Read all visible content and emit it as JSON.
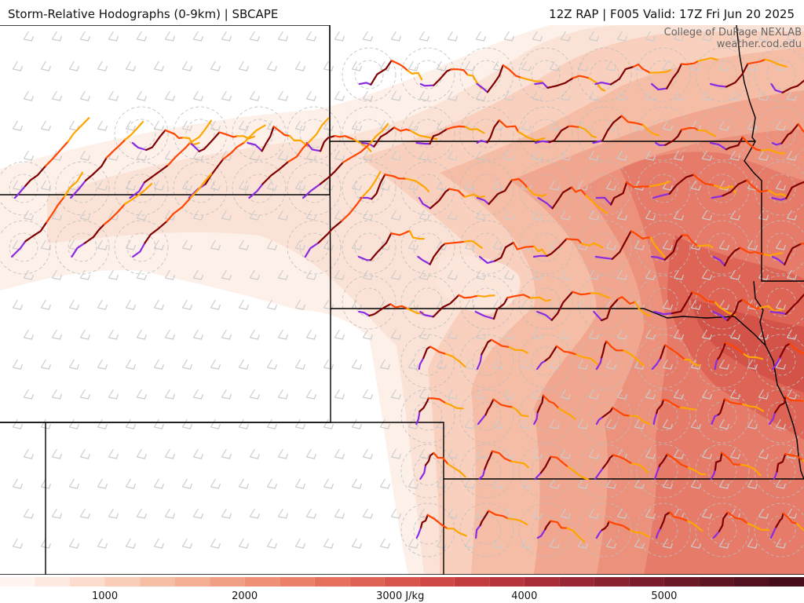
{
  "header": {
    "title": "Storm-Relative Hodographs (0-9km) | SBCAPE",
    "run": "12Z RAP | F005 Valid: 17Z Fri Jun 20 2025"
  },
  "credit": {
    "line1": "College of DuPage NEXLAB",
    "line2": "weather.cod.edu"
  },
  "colorbar": {
    "ticks": [
      {
        "value": 1000,
        "label": "1000"
      },
      {
        "value": 2000,
        "label": "2000"
      },
      {
        "value": 3000,
        "label": "3000 J/kg"
      },
      {
        "value": 4000,
        "label": "4000"
      },
      {
        "value": 5000,
        "label": "5000"
      }
    ],
    "min": 250,
    "max": 6000,
    "step": 250,
    "colors": [
      "#fff4ef",
      "#fde9df",
      "#fbdccd",
      "#f9cdb8",
      "#f7bea6",
      "#f4ae94",
      "#f19f84",
      "#ee9075",
      "#ea8068",
      "#e5715d",
      "#df6354",
      "#d7554c",
      "#cf4845",
      "#c33d40",
      "#b6343c",
      "#a72c38",
      "#982634",
      "#89212f",
      "#7a1c2b",
      "#6c1826",
      "#5f1422",
      "#52111e",
      "#460e1a"
    ]
  },
  "hodograph_colors": {
    "layer_0_1km": "#8a2be2",
    "layer_1_3km": "#800000",
    "layer_3_6km": "#ff4500",
    "layer_6_9km": "#ffa500",
    "background_barb": "#cccccc",
    "state_border": "#000000"
  }
}
